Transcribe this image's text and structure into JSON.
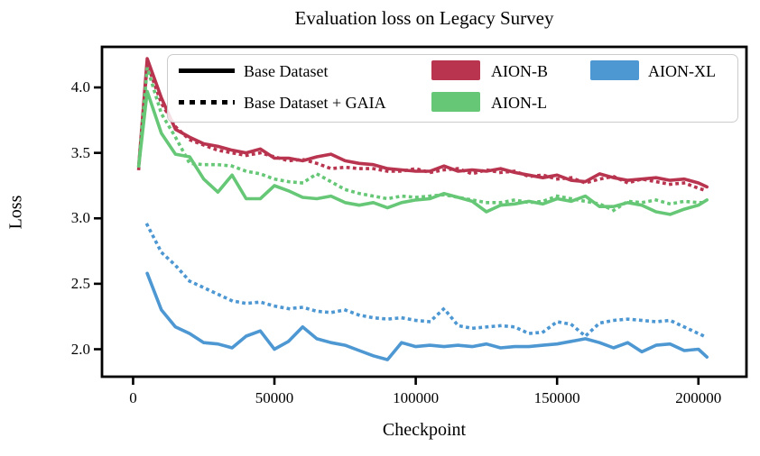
{
  "chart_data": {
    "type": "line",
    "title": "Evaluation loss on Legacy Survey",
    "xlabel": "Checkpoint",
    "ylabel": "Loss",
    "xlim": [
      -11000,
      217000
    ],
    "ylim": [
      1.79,
      4.31
    ],
    "grid": false,
    "legend_position": "upper center inside plot",
    "xticks": [
      {
        "value": 0,
        "label": "0"
      },
      {
        "value": 50000,
        "label": "50000"
      },
      {
        "value": 100000,
        "label": "100000"
      },
      {
        "value": 150000,
        "label": "150000"
      },
      {
        "value": 200000,
        "label": "200000"
      }
    ],
    "yticks": [
      {
        "value": 2.0,
        "label": "2.0"
      },
      {
        "value": 2.5,
        "label": "2.5"
      },
      {
        "value": 3.0,
        "label": "3.0"
      },
      {
        "value": 3.5,
        "label": "3.5"
      },
      {
        "value": 4.0,
        "label": "4.0"
      }
    ],
    "x": [
      2000,
      5000,
      10000,
      15000,
      20000,
      25000,
      30000,
      35000,
      40000,
      45000,
      50000,
      55000,
      60000,
      65000,
      70000,
      75000,
      80000,
      85000,
      90000,
      95000,
      100000,
      105000,
      110000,
      115000,
      120000,
      125000,
      130000,
      135000,
      140000,
      145000,
      150000,
      155000,
      160000,
      165000,
      170000,
      175000,
      180000,
      185000,
      190000,
      195000,
      200000,
      203000
    ],
    "series": [
      {
        "name": "AION-B (Base Dataset)",
        "model": "AION-B",
        "dataset": "Base Dataset",
        "color": "#b8344f",
        "line_style": "solid",
        "values": [
          3.4,
          4.22,
          3.92,
          3.68,
          3.62,
          3.57,
          3.55,
          3.52,
          3.5,
          3.53,
          3.46,
          3.46,
          3.44,
          3.47,
          3.49,
          3.44,
          3.42,
          3.41,
          3.38,
          3.37,
          3.36,
          3.36,
          3.4,
          3.36,
          3.37,
          3.36,
          3.38,
          3.35,
          3.33,
          3.31,
          3.33,
          3.29,
          3.28,
          3.34,
          3.31,
          3.29,
          3.3,
          3.31,
          3.29,
          3.3,
          3.27,
          3.24
        ]
      },
      {
        "name": "AION-B (Base Dataset + GAIA)",
        "model": "AION-B",
        "dataset": "Base Dataset + GAIA",
        "color": "#b8344f",
        "line_style": "dotted",
        "values": [
          3.38,
          4.18,
          3.88,
          3.7,
          3.6,
          3.56,
          3.52,
          3.5,
          3.48,
          3.5,
          3.47,
          3.44,
          3.45,
          3.42,
          3.38,
          3.39,
          3.38,
          3.38,
          3.36,
          3.36,
          3.38,
          3.35,
          3.37,
          3.38,
          3.34,
          3.37,
          3.35,
          3.36,
          3.32,
          3.33,
          3.3,
          3.31,
          3.27,
          3.3,
          3.32,
          3.27,
          3.3,
          3.28,
          3.26,
          3.27,
          3.23,
          3.21
        ]
      },
      {
        "name": "AION-L (Base Dataset)",
        "model": "AION-L",
        "dataset": "Base Dataset",
        "color": "#66c877",
        "line_style": "solid",
        "values": [
          3.4,
          3.97,
          3.65,
          3.49,
          3.47,
          3.3,
          3.2,
          3.33,
          3.15,
          3.15,
          3.25,
          3.21,
          3.16,
          3.15,
          3.17,
          3.12,
          3.1,
          3.12,
          3.08,
          3.12,
          3.14,
          3.15,
          3.19,
          3.16,
          3.13,
          3.05,
          3.1,
          3.11,
          3.13,
          3.11,
          3.15,
          3.13,
          3.17,
          3.09,
          3.09,
          3.12,
          3.1,
          3.05,
          3.03,
          3.07,
          3.1,
          3.14
        ]
      },
      {
        "name": "AION-L (Base Dataset + GAIA)",
        "model": "AION-L",
        "dataset": "Base Dataset + GAIA",
        "color": "#66c877",
        "line_style": "dotted",
        "values": [
          3.4,
          4.15,
          3.8,
          3.62,
          3.42,
          3.41,
          3.41,
          3.4,
          3.36,
          3.34,
          3.3,
          3.28,
          3.27,
          3.34,
          3.28,
          3.22,
          3.19,
          3.17,
          3.15,
          3.17,
          3.16,
          3.17,
          3.18,
          3.16,
          3.14,
          3.12,
          3.12,
          3.14,
          3.12,
          3.13,
          3.17,
          3.15,
          3.13,
          3.11,
          3.06,
          3.13,
          3.12,
          3.14,
          3.11,
          3.13,
          3.12,
          3.12
        ]
      },
      {
        "name": "AION-XL (Base Dataset)",
        "model": "AION-XL",
        "dataset": "Base Dataset",
        "color": "#4d97d2",
        "line_style": "solid",
        "values": [
          null,
          2.58,
          2.3,
          2.17,
          2.12,
          2.05,
          2.04,
          2.01,
          2.1,
          2.14,
          2.0,
          2.06,
          2.17,
          2.08,
          2.05,
          2.03,
          1.99,
          1.95,
          1.92,
          2.05,
          2.02,
          2.03,
          2.02,
          2.03,
          2.02,
          2.04,
          2.01,
          2.02,
          2.02,
          2.03,
          2.04,
          2.06,
          2.08,
          2.05,
          2.01,
          2.05,
          1.98,
          2.03,
          2.04,
          1.99,
          2.0,
          1.94
        ]
      },
      {
        "name": "AION-XL (Base Dataset + GAIA)",
        "model": "AION-XL",
        "dataset": "Base Dataset + GAIA",
        "color": "#4d97d2",
        "line_style": "dotted",
        "values": [
          null,
          2.95,
          2.74,
          2.64,
          2.52,
          2.47,
          2.42,
          2.37,
          2.35,
          2.36,
          2.33,
          2.31,
          2.32,
          2.29,
          2.28,
          2.3,
          2.26,
          2.24,
          2.23,
          2.24,
          2.22,
          2.21,
          2.31,
          2.18,
          2.16,
          2.17,
          2.18,
          2.17,
          2.12,
          2.13,
          2.21,
          2.19,
          2.1,
          2.2,
          2.22,
          2.23,
          2.22,
          2.21,
          2.22,
          2.17,
          2.12,
          2.09
        ]
      }
    ],
    "legend": {
      "style_entries": [
        {
          "label": "Base Dataset",
          "style": "solid"
        },
        {
          "label": "Base Dataset + GAIA",
          "style": "dotted"
        }
      ],
      "color_entries": [
        {
          "label": "AION-B",
          "color": "#b8344f"
        },
        {
          "label": "AION-L",
          "color": "#66c877"
        },
        {
          "label": "AION-XL",
          "color": "#4d97d2"
        }
      ]
    },
    "colors": {
      "aion_b": "#b8344f",
      "aion_l": "#66c877",
      "aion_xl": "#4d97d2",
      "axis": "#000000",
      "legend_border": "#cccccc"
    }
  }
}
